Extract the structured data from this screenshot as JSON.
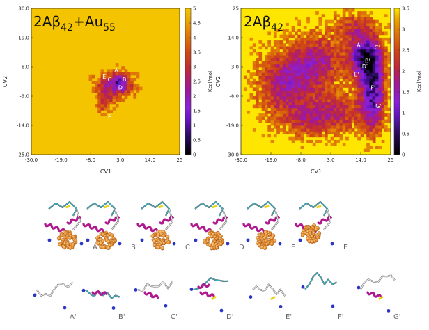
{
  "chart_data": [
    {
      "type": "heatmap",
      "title": "2Aβ42+Au55",
      "title_main": "2Aβ",
      "title_sub1": "42",
      "title_plus": "+Au",
      "title_sub2": "55",
      "xlabel": "CV1",
      "ylabel": "CV2",
      "x_ticks": [
        "-30.0",
        "-19.0",
        "-8.0",
        "3.0",
        "14.0",
        "25"
      ],
      "y_ticks": [
        "30.0",
        "19.0",
        "8.0",
        "-3.0",
        "-14.0",
        "-25.0"
      ],
      "xlim": [
        -30,
        25
      ],
      "ylim": [
        -25,
        30
      ],
      "colorbar": {
        "label": "Kcal/mol",
        "range": [
          0,
          5
        ],
        "ticks": [
          "5",
          "4.5",
          "4",
          "3.5",
          "3",
          "2.5",
          "2",
          "1.5",
          "1",
          "0.5",
          "0"
        ]
      },
      "basin_labels": [
        {
          "label": "A",
          "x": 1.5,
          "y": 6.0
        },
        {
          "label": "B",
          "x": 4.5,
          "y": 2.5
        },
        {
          "label": "C",
          "x": -1.0,
          "y": 2.5
        },
        {
          "label": "D",
          "x": 3.0,
          "y": -0.5
        },
        {
          "label": "E",
          "x": -3.0,
          "y": 3.5
        },
        {
          "label": "F",
          "x": -1.0,
          "y": -11.5
        }
      ],
      "low_energy_blobs": [
        {
          "x": 0.5,
          "y": 0.5,
          "sx": 8.5,
          "sy": 6.0,
          "depth": 2.8,
          "noise_seed": 7
        },
        {
          "x": -3.5,
          "y": -6.5,
          "sx": 3.5,
          "sy": 4.5,
          "depth": 1.8,
          "noise_seed": 3
        },
        {
          "x": 2.5,
          "y": 2.0,
          "sx": 3.5,
          "sy": 3.5,
          "depth": 1.5,
          "noise_seed": 11
        }
      ]
    },
    {
      "type": "heatmap",
      "title": "2Aβ42",
      "title_main": "2Aβ",
      "title_sub1": "42",
      "xlabel": "CV1",
      "ylabel": "CV2",
      "x_ticks": [
        "-30.0",
        "-19.0",
        "-8.0",
        "3.0",
        "14.0",
        "25"
      ],
      "y_ticks": [
        "25",
        "14.0",
        "3.0",
        "-8.0",
        "-19.0",
        "-30.0"
      ],
      "xlim": [
        -30,
        25
      ],
      "ylim": [
        -30,
        25
      ],
      "colorbar": {
        "label": "Kcal/mol",
        "range": [
          0,
          3.5
        ],
        "ticks": [
          "3.5",
          "3",
          "2.5",
          "2",
          "1.5",
          "1",
          "0.5",
          "0"
        ]
      },
      "basin_labels": [
        {
          "label": "A'",
          "x": 13.5,
          "y": 10.5
        },
        {
          "label": "C'",
          "x": 20.0,
          "y": 9.5
        },
        {
          "label": "B'",
          "x": 16.5,
          "y": 4.5
        },
        {
          "label": "D'",
          "x": 15.5,
          "y": 2.5
        },
        {
          "label": "E'",
          "x": 12.5,
          "y": -0.5
        },
        {
          "label": "F'",
          "x": 18.5,
          "y": -5.5
        },
        {
          "label": "G'",
          "x": 20.5,
          "y": -12.5
        }
      ]
    }
  ],
  "structures": {
    "top_row": [
      "A",
      "B",
      "C",
      "D",
      "E",
      "F"
    ],
    "bottom_row": [
      "A'",
      "B'",
      "C'",
      "D'",
      "E'",
      "F'",
      "G'"
    ]
  },
  "colors": {
    "high": "#f5c400",
    "mid": "#c8400a",
    "low_purple": "#7a1fd6",
    "deep": "#000000",
    "gold": "#e88a2a",
    "helix": "#b0188f",
    "strand": "#e8d21a",
    "coil": "#e8e8e8",
    "ion": "#2a35c8",
    "loop_cyan": "#37b6c8"
  }
}
